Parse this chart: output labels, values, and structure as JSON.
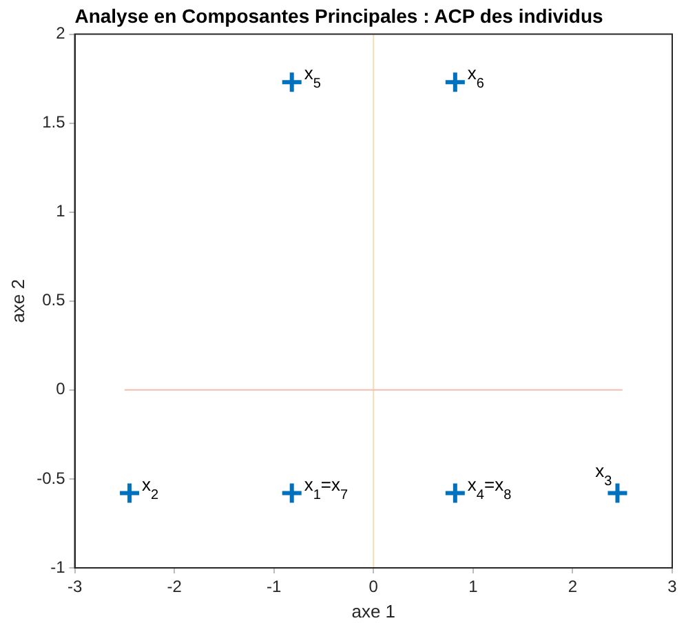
{
  "chart_data": {
    "type": "scatter",
    "title": "Analyse en Composantes Principales : ACP des individus",
    "xlabel": "axe 1",
    "ylabel": "axe 2",
    "xlim": [
      -3,
      3
    ],
    "xticks": [
      -3,
      -2,
      -1,
      0,
      1,
      2,
      3
    ],
    "ylim": [
      -1,
      2
    ],
    "yticks": [
      -1,
      -0.5,
      0,
      0.5,
      1,
      1.5,
      2
    ],
    "series": [
      {
        "color": "#0072bd",
        "x": [
          -0.82,
          -2.45,
          2.45,
          0.82,
          -0.82,
          0.82
        ],
        "values": [
          -0.58,
          -0.58,
          -0.58,
          -0.58,
          1.73,
          1.73
        ]
      },
      {
        "type": "line",
        "color": "#f4bcae",
        "marker": "none",
        "x": [
          -2.5,
          2.5
        ],
        "values": [
          0,
          0
        ]
      }
    ],
    "ref_lines": [
      {
        "axis": "x",
        "value": 0,
        "color": "#f4deb0"
      }
    ],
    "annotations": [
      {
        "text": "x$_{1}$=x$_{7}$",
        "x": -0.82,
        "y": -0.58
      },
      {
        "text": "x$_{2}$",
        "x": -2.45,
        "y": -0.58
      },
      {
        "text": "x$_{3}$",
        "x": 2.45,
        "y": -0.58
      },
      {
        "text": "x$_{4}$=x$_{8}$",
        "x": 0.82,
        "y": -0.58
      },
      {
        "text": "x$_{5}$",
        "x": -0.82,
        "y": 1.73
      },
      {
        "text": "x$_{6}$",
        "x": 0.82,
        "y": 1.73
      }
    ],
    "marker": "cross",
    "grid": false,
    "legend": false
  }
}
